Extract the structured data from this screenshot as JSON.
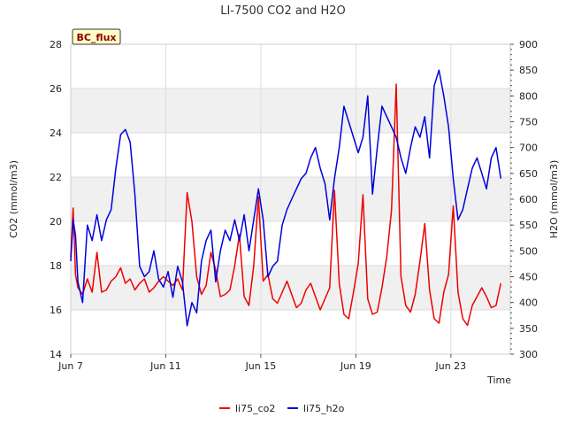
{
  "chart_data": {
    "type": "line",
    "title": "LI-7500 CO2 and H2O",
    "badge": "BC_flux",
    "xlabel": "Time",
    "ylabel_left": "CO2 (mmol/m3)",
    "ylabel_right": "H2O (mmol/m3)",
    "x_range_days": [
      7,
      25.5
    ],
    "x_ticks": [
      {
        "day": 7,
        "label": "Jun 7"
      },
      {
        "day": 11,
        "label": "Jun 11"
      },
      {
        "day": 15,
        "label": "Jun 15"
      },
      {
        "day": 19,
        "label": "Jun 19"
      },
      {
        "day": 23,
        "label": "Jun 23"
      }
    ],
    "ylim_left": [
      14,
      28
    ],
    "yticks_left": [
      14,
      16,
      18,
      20,
      22,
      24,
      26,
      28
    ],
    "ylim_right": [
      300,
      900
    ],
    "yticks_right": [
      300,
      350,
      400,
      450,
      500,
      550,
      600,
      650,
      700,
      750,
      800,
      850,
      900
    ],
    "colors": {
      "co2": "#ee0000",
      "h2o": "#0000dd",
      "band": "#f0f0f0",
      "grid": "#dddddd"
    },
    "series": [
      {
        "name": "li75_co2",
        "axis": "left",
        "color": "#ee0000",
        "x": [
          7.0,
          7.1,
          7.2,
          7.3,
          7.5,
          7.7,
          7.9,
          8.1,
          8.3,
          8.5,
          8.7,
          8.9,
          9.1,
          9.3,
          9.5,
          9.7,
          9.9,
          10.1,
          10.3,
          10.5,
          10.7,
          10.9,
          11.1,
          11.3,
          11.5,
          11.7,
          11.9,
          12.1,
          12.3,
          12.5,
          12.7,
          12.9,
          13.1,
          13.3,
          13.5,
          13.7,
          13.9,
          14.1,
          14.3,
          14.5,
          14.7,
          14.9,
          15.1,
          15.3,
          15.5,
          15.7,
          15.9,
          16.1,
          16.3,
          16.5,
          16.7,
          16.9,
          17.1,
          17.3,
          17.5,
          17.7,
          17.9,
          18.1,
          18.3,
          18.5,
          18.7,
          18.9,
          19.1,
          19.3,
          19.5,
          19.7,
          19.9,
          20.1,
          20.3,
          20.5,
          20.7,
          20.9,
          21.1,
          21.3,
          21.5,
          21.7,
          21.9,
          22.1,
          22.3,
          22.5,
          22.7,
          22.9,
          23.1,
          23.3,
          23.5,
          23.7,
          23.9,
          24.1,
          24.3,
          24.5,
          24.7,
          24.9,
          25.1
        ],
        "values": [
          18.4,
          20.6,
          17.6,
          17.0,
          16.7,
          17.4,
          16.8,
          18.6,
          16.8,
          16.9,
          17.3,
          17.5,
          17.9,
          17.2,
          17.4,
          16.9,
          17.2,
          17.4,
          16.8,
          17.0,
          17.3,
          17.5,
          17.3,
          17.1,
          17.4,
          16.9,
          21.3,
          20.0,
          17.5,
          16.7,
          17.1,
          18.6,
          17.8,
          16.6,
          16.7,
          16.9,
          18.0,
          19.4,
          16.6,
          16.2,
          18.0,
          21.1,
          17.3,
          17.6,
          16.5,
          16.3,
          16.8,
          17.3,
          16.7,
          16.1,
          16.3,
          16.9,
          17.2,
          16.6,
          16.0,
          16.5,
          17.0,
          21.4,
          17.2,
          15.8,
          15.6,
          16.8,
          18.1,
          21.2,
          16.5,
          15.8,
          15.9,
          17.0,
          18.4,
          20.5,
          26.2,
          17.5,
          16.2,
          15.9,
          16.7,
          18.2,
          19.9,
          16.9,
          15.6,
          15.4,
          16.8,
          17.6,
          20.7,
          16.8,
          15.6,
          15.3,
          16.2,
          16.6,
          17.0,
          16.6,
          16.1,
          16.2,
          17.2
        ]
      },
      {
        "name": "li75_h2o",
        "axis": "right",
        "color": "#0000dd",
        "x": [
          7.0,
          7.1,
          7.2,
          7.3,
          7.5,
          7.7,
          7.9,
          8.1,
          8.3,
          8.5,
          8.7,
          8.9,
          9.1,
          9.3,
          9.5,
          9.7,
          9.9,
          10.1,
          10.3,
          10.5,
          10.7,
          10.9,
          11.1,
          11.3,
          11.5,
          11.7,
          11.9,
          12.1,
          12.3,
          12.5,
          12.7,
          12.9,
          13.1,
          13.3,
          13.5,
          13.7,
          13.9,
          14.1,
          14.3,
          14.5,
          14.7,
          14.9,
          15.1,
          15.3,
          15.5,
          15.7,
          15.9,
          16.1,
          16.3,
          16.5,
          16.7,
          16.9,
          17.1,
          17.3,
          17.5,
          17.7,
          17.9,
          18.1,
          18.3,
          18.5,
          18.7,
          18.9,
          19.1,
          19.3,
          19.5,
          19.7,
          19.9,
          20.1,
          20.3,
          20.5,
          20.7,
          20.9,
          21.1,
          21.3,
          21.5,
          21.7,
          21.9,
          22.1,
          22.3,
          22.5,
          22.7,
          22.9,
          23.1,
          23.3,
          23.5,
          23.7,
          23.9,
          24.1,
          24.3,
          24.5,
          24.7,
          24.9,
          25.1
        ],
        "values": [
          480,
          560,
          530,
          440,
          400,
          550,
          520,
          570,
          520,
          560,
          580,
          660,
          725,
          735,
          710,
          610,
          470,
          450,
          460,
          500,
          445,
          430,
          460,
          410,
          470,
          440,
          355,
          400,
          380,
          480,
          520,
          540,
          440,
          500,
          540,
          520,
          560,
          520,
          570,
          500,
          560,
          620,
          560,
          450,
          470,
          480,
          550,
          580,
          600,
          620,
          640,
          650,
          680,
          700,
          660,
          630,
          560,
          640,
          700,
          780,
          750,
          720,
          690,
          720,
          800,
          610,
          700,
          780,
          760,
          740,
          720,
          680,
          650,
          700,
          740,
          720,
          760,
          680,
          820,
          850,
          800,
          740,
          640,
          560,
          580,
          620,
          660,
          680,
          650,
          620,
          680,
          700,
          640
        ]
      }
    ]
  },
  "legend": [
    {
      "label": "li75_co2",
      "color": "#ee0000"
    },
    {
      "label": "li75_h2o",
      "color": "#0000dd"
    }
  ]
}
